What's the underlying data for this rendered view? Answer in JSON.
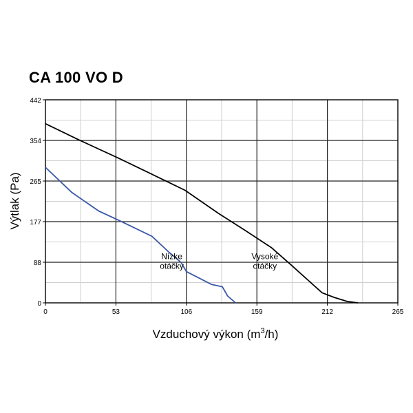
{
  "chart_data": {
    "type": "line",
    "title": "CA 100 VO D",
    "xlabel_main": "Vzduchový výkon (m",
    "xlabel_sup": "3",
    "xlabel_tail": "/h)",
    "ylabel": "Výtlak (Pa)",
    "xlim": [
      0,
      265
    ],
    "ylim": [
      0,
      442
    ],
    "x_ticks": [
      "0",
      "53",
      "106",
      "159",
      "212",
      "265"
    ],
    "y_ticks": [
      "0",
      "88",
      "177",
      "265",
      "354",
      "442"
    ],
    "grid": true,
    "series": [
      {
        "name": "Vysoké otáčky",
        "color": "#000000",
        "x": [
          0,
          25,
          55,
          80,
          105,
          130,
          150,
          170,
          185,
          198,
          208,
          217,
          227,
          235
        ],
        "y": [
          390,
          355,
          315,
          280,
          245,
          195,
          158,
          120,
          82,
          48,
          22,
          12,
          3,
          0
        ]
      },
      {
        "name": "Nízke otáčky",
        "color": "#3a57a7",
        "x": [
          0,
          20,
          40,
          55,
          80,
          93,
          102,
          106,
          125,
          133,
          137,
          143
        ],
        "y": [
          295,
          240,
          200,
          180,
          145,
          110,
          88,
          68,
          40,
          35,
          15,
          0
        ]
      }
    ],
    "annotations": [
      {
        "lines": [
          "Nízke",
          "otáčky"
        ],
        "x": 95,
        "y": 95
      },
      {
        "lines": [
          "Vysoké",
          "otáčky"
        ],
        "x": 165,
        "y": 95
      }
    ]
  }
}
